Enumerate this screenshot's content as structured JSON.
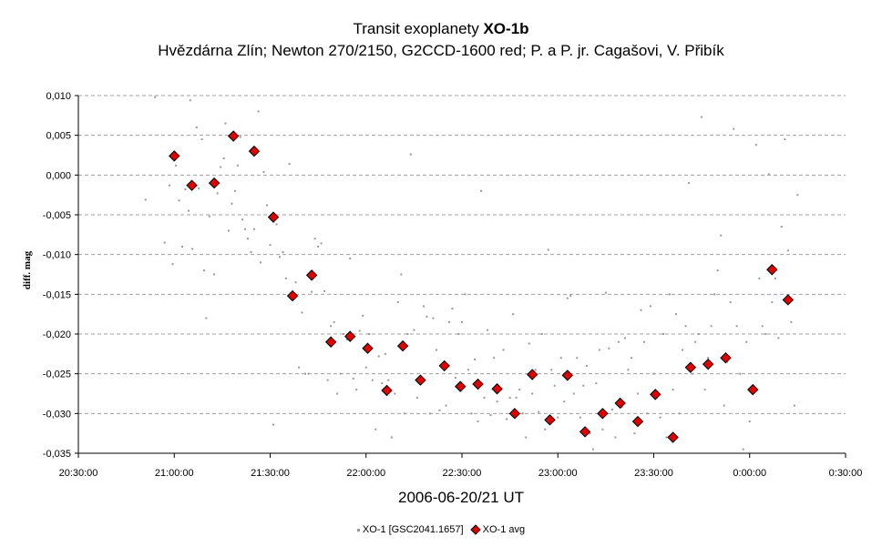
{
  "chart_data": {
    "type": "scatter",
    "title_plain": "Transit exoplanety ",
    "title_bold": "XO-1b",
    "subtitle": "Hvězdárna Zlín; Newton 270/2150, G2CCD-1600 red; P. a P. jr. Cagašovi, V. Přibík",
    "xlabel": "2006-06-20/21 UT",
    "ylabel": "diff. mag",
    "x_ticks": [
      "20:30:00",
      "21:00:00",
      "21:30:00",
      "22:00:00",
      "22:30:00",
      "23:00:00",
      "23:30:00",
      "0:00:00",
      "0:30:00"
    ],
    "y_ticks": [
      "0,010",
      "0,005",
      "0,000",
      "-0,005",
      "-0,010",
      "-0,015",
      "-0,020",
      "-0,025",
      "-0,030",
      "-0,035"
    ],
    "xlim": [
      "20:30:00",
      "0:30:00"
    ],
    "ylim": [
      -0.035,
      0.01
    ],
    "grid": "horizontal dashed",
    "legend_position": "bottom",
    "series": [
      {
        "name": "XO-1 [GSC2041.1657]",
        "marker": "small-gray-dot",
        "color": "#999999",
        "points": [
          [
            "20:51:00",
            -0.0031
          ],
          [
            "20:54:00",
            0.0098
          ],
          [
            "20:57:00",
            -0.0085
          ],
          [
            "20:58:30",
            -0.0013
          ],
          [
            "20:59:30",
            -0.0112
          ],
          [
            "21:00:30",
            0.0012
          ],
          [
            "21:01:30",
            -0.0032
          ],
          [
            "21:02:30",
            -0.009
          ],
          [
            "21:03:30",
            -0.0018
          ],
          [
            "21:04:30",
            -0.0045
          ],
          [
            "21:05:00",
            0.0094
          ],
          [
            "21:05:40",
            -0.0093
          ],
          [
            "21:06:20",
            -0.001
          ],
          [
            "21:07:00",
            0.006
          ],
          [
            "21:07:40",
            -0.0017
          ],
          [
            "21:08:40",
            0.0045
          ],
          [
            "21:09:20",
            -0.012
          ],
          [
            "21:10:00",
            -0.018
          ],
          [
            "21:11:00",
            -0.0052
          ],
          [
            "21:12:30",
            -0.0125
          ],
          [
            "21:13:30",
            -0.0023
          ],
          [
            "21:14:30",
            0.001
          ],
          [
            "21:15:30",
            0.0021
          ],
          [
            "21:16:00",
            0.0065
          ],
          [
            "21:17:00",
            -0.007
          ],
          [
            "21:18:00",
            -0.0036
          ],
          [
            "21:19:00",
            -0.002
          ],
          [
            "21:19:50",
            0.0012
          ],
          [
            "21:20:40",
            0.0048
          ],
          [
            "21:21:20",
            -0.0056
          ],
          [
            "21:22:10",
            -0.0068
          ],
          [
            "21:23:00",
            -0.008
          ],
          [
            "21:24:00",
            -0.0097
          ],
          [
            "21:25:00",
            -0.0068
          ],
          [
            "21:26:20",
            0.008
          ],
          [
            "21:27:00",
            -0.011
          ],
          [
            "21:28:00",
            0.0004
          ],
          [
            "21:29:00",
            -0.0038
          ],
          [
            "21:30:00",
            -0.0088
          ],
          [
            "21:31:00",
            -0.0314
          ],
          [
            "21:32:00",
            -0.0062
          ],
          [
            "21:33:00",
            -0.0103
          ],
          [
            "21:34:00",
            -0.0097
          ],
          [
            "21:35:00",
            -0.013
          ],
          [
            "21:36:00",
            0.0014
          ],
          [
            "21:37:00",
            -0.0149
          ],
          [
            "21:38:00",
            -0.0135
          ],
          [
            "21:39:00",
            -0.0242
          ],
          [
            "21:40:00",
            -0.0173
          ],
          [
            "21:41:00",
            -0.025
          ],
          [
            "21:42:00",
            -0.025
          ],
          [
            "21:43:00",
            -0.0147
          ],
          [
            "21:44:00",
            -0.008
          ],
          [
            "21:45:00",
            -0.009
          ],
          [
            "21:46:00",
            -0.0086
          ],
          [
            "21:47:00",
            -0.0146
          ],
          [
            "21:48:00",
            -0.0258
          ],
          [
            "21:49:00",
            -0.019
          ],
          [
            "21:50:00",
            -0.0185
          ],
          [
            "21:51:00",
            -0.0275
          ],
          [
            "21:52:00",
            -0.025
          ],
          [
            "21:53:00",
            -0.02
          ],
          [
            "21:54:00",
            -0.0207
          ],
          [
            "21:55:00",
            -0.0105
          ],
          [
            "21:56:00",
            -0.0256
          ],
          [
            "21:57:00",
            -0.027
          ],
          [
            "21:58:00",
            -0.0196
          ],
          [
            "21:59:00",
            -0.0177
          ],
          [
            "22:00:00",
            -0.0242
          ],
          [
            "22:01:00",
            -0.02
          ],
          [
            "22:02:00",
            -0.0258
          ],
          [
            "22:03:00",
            -0.032
          ],
          [
            "22:04:00",
            -0.0228
          ],
          [
            "22:05:00",
            -0.0262
          ],
          [
            "22:06:00",
            -0.0225
          ],
          [
            "22:07:00",
            -0.0258
          ],
          [
            "22:08:00",
            -0.033
          ],
          [
            "22:09:00",
            -0.0275
          ],
          [
            "22:10:00",
            -0.016
          ],
          [
            "22:11:00",
            -0.0125
          ],
          [
            "22:12:00",
            -0.03
          ],
          [
            "22:13:00",
            -0.02
          ],
          [
            "22:14:00",
            0.0026
          ],
          [
            "22:15:00",
            -0.0195
          ],
          [
            "22:16:00",
            -0.028
          ],
          [
            "22:17:00",
            -0.026
          ],
          [
            "22:18:00",
            -0.0165
          ],
          [
            "22:19:00",
            -0.0178
          ],
          [
            "22:20:00",
            -0.03
          ],
          [
            "22:21:00",
            -0.018
          ],
          [
            "22:22:00",
            -0.022
          ],
          [
            "22:23:00",
            -0.0296
          ],
          [
            "22:24:00",
            -0.024
          ],
          [
            "22:25:00",
            -0.029
          ],
          [
            "22:26:00",
            -0.0185
          ],
          [
            "22:27:00",
            -0.0168
          ],
          [
            "22:28:00",
            -0.0255
          ],
          [
            "22:29:00",
            -0.02
          ],
          [
            "22:30:00",
            -0.0185
          ],
          [
            "22:31:00",
            -0.015
          ],
          [
            "22:32:00",
            -0.0245
          ],
          [
            "22:33:00",
            -0.03
          ],
          [
            "22:34:00",
            -0.0232
          ],
          [
            "22:35:00",
            -0.031
          ],
          [
            "22:36:00",
            -0.002
          ],
          [
            "22:37:00",
            -0.028
          ],
          [
            "22:38:00",
            -0.0195
          ],
          [
            "22:39:00",
            -0.0302
          ],
          [
            "22:40:00",
            -0.023
          ],
          [
            "22:41:00",
            -0.0285
          ],
          [
            "22:42:00",
            -0.0268
          ],
          [
            "22:43:00",
            -0.022
          ],
          [
            "22:44:00",
            -0.0307
          ],
          [
            "22:45:00",
            -0.028
          ],
          [
            "22:46:00",
            -0.0175
          ],
          [
            "22:47:00",
            -0.028
          ],
          [
            "22:48:00",
            -0.027
          ],
          [
            "22:49:00",
            -0.03
          ],
          [
            "22:50:00",
            -0.033
          ],
          [
            "22:51:00",
            -0.0212
          ],
          [
            "22:52:00",
            -0.0275
          ],
          [
            "22:53:00",
            -0.0245
          ],
          [
            "22:54:00",
            -0.0298
          ],
          [
            "22:55:00",
            -0.02
          ],
          [
            "22:56:00",
            -0.032
          ],
          [
            "22:57:00",
            -0.0094
          ],
          [
            "22:58:00",
            -0.0245
          ],
          [
            "22:59:00",
            -0.0265
          ],
          [
            "23:00:00",
            -0.0305
          ],
          [
            "23:01:00",
            -0.023
          ],
          [
            "23:02:00",
            -0.0285
          ],
          [
            "23:03:00",
            -0.0155
          ],
          [
            "23:04:00",
            -0.0152
          ],
          [
            "23:05:00",
            -0.0275
          ],
          [
            "23:06:00",
            -0.023
          ],
          [
            "23:07:00",
            -0.0305
          ],
          [
            "23:08:00",
            -0.0265
          ],
          [
            "23:09:00",
            -0.024
          ],
          [
            "23:10:00",
            -0.0325
          ],
          [
            "23:11:00",
            -0.0345
          ],
          [
            "23:12:00",
            -0.0262
          ],
          [
            "23:13:00",
            -0.022
          ],
          [
            "23:14:00",
            -0.032
          ],
          [
            "23:15:00",
            -0.0148
          ],
          [
            "23:16:00",
            -0.0218
          ],
          [
            "23:17:00",
            -0.0295
          ],
          [
            "23:18:00",
            -0.033
          ],
          [
            "23:19:00",
            -0.021
          ],
          [
            "23:20:00",
            -0.0292
          ],
          [
            "23:21:00",
            -0.0205
          ],
          [
            "23:22:00",
            -0.0245
          ],
          [
            "23:23:00",
            -0.023
          ],
          [
            "23:24:00",
            -0.0325
          ],
          [
            "23:25:00",
            -0.0275
          ],
          [
            "23:26:00",
            -0.017
          ],
          [
            "23:27:00",
            -0.021
          ],
          [
            "23:28:00",
            -0.03
          ],
          [
            "23:29:00",
            -0.0165
          ],
          [
            "23:30:00",
            -0.025
          ],
          [
            "23:31:00",
            -0.028
          ],
          [
            "23:32:00",
            -0.0305
          ],
          [
            "23:33:00",
            -0.02
          ],
          [
            "23:34:00",
            -0.033
          ],
          [
            "23:35:00",
            -0.015
          ],
          [
            "23:36:00",
            -0.027
          ],
          [
            "23:37:00",
            -0.0175
          ],
          [
            "23:38:00",
            -0.03
          ],
          [
            "23:39:00",
            -0.022
          ],
          [
            "23:40:00",
            -0.019
          ],
          [
            "23:41:00",
            -0.001
          ],
          [
            "23:42:00",
            -0.025
          ],
          [
            "23:43:00",
            -0.021
          ],
          [
            "23:44:00",
            -0.02
          ],
          [
            "23:45:00",
            0.0073
          ],
          [
            "23:46:00",
            -0.027
          ],
          [
            "23:47:00",
            -0.023
          ],
          [
            "23:48:00",
            -0.019
          ],
          [
            "23:49:00",
            -0.015
          ],
          [
            "23:50:00",
            -0.012
          ],
          [
            "23:51:00",
            -0.0076
          ],
          [
            "23:52:00",
            -0.029
          ],
          [
            "23:53:00",
            -0.0235
          ],
          [
            "23:54:00",
            -0.016
          ],
          [
            "23:55:00",
            0.0058
          ],
          [
            "23:56:00",
            -0.019
          ],
          [
            "23:57:00",
            -0.025
          ],
          [
            "23:58:00",
            -0.0345
          ],
          [
            "23:59:00",
            -0.021
          ],
          [
            "0:00:00",
            -0.031
          ],
          [
            "0:01:00",
            -0.027
          ],
          [
            "0:02:00",
            0.0038
          ],
          [
            "0:03:00",
            -0.013
          ],
          [
            "0:04:00",
            -0.019
          ],
          [
            "0:05:00",
            -0.02
          ],
          [
            "0:06:00",
            0.0001
          ],
          [
            "0:07:00",
            -0.016
          ],
          [
            "0:08:00",
            -0.013
          ],
          [
            "0:09:00",
            -0.0205
          ],
          [
            "0:10:00",
            -0.0065
          ],
          [
            "0:11:00",
            0.0045
          ],
          [
            "0:12:00",
            -0.0095
          ],
          [
            "0:13:00",
            -0.0185
          ],
          [
            "0:14:00",
            -0.029
          ],
          [
            "0:15:00",
            -0.0025
          ]
        ]
      },
      {
        "name": "XO-1 avg",
        "marker": "red-diamond",
        "color": "#e00000",
        "points": [
          [
            "21:00:00",
            0.0024
          ],
          [
            "21:05:30",
            -0.0013
          ],
          [
            "21:12:30",
            -0.001
          ],
          [
            "21:18:30",
            0.0049
          ],
          [
            "21:25:00",
            0.003
          ],
          [
            "21:31:00",
            -0.0053
          ],
          [
            "21:37:00",
            -0.0152
          ],
          [
            "21:43:00",
            -0.0126
          ],
          [
            "21:49:00",
            -0.021
          ],
          [
            "21:55:00",
            -0.0203
          ],
          [
            "22:00:30",
            -0.0218
          ],
          [
            "22:06:30",
            -0.0271
          ],
          [
            "22:11:30",
            -0.0215
          ],
          [
            "22:17:00",
            -0.0258
          ],
          [
            "22:24:30",
            -0.024
          ],
          [
            "22:29:30",
            -0.0266
          ],
          [
            "22:35:00",
            -0.0263
          ],
          [
            "22:41:00",
            -0.0269
          ],
          [
            "22:46:30",
            -0.03
          ],
          [
            "22:52:00",
            -0.0251
          ],
          [
            "22:57:30",
            -0.0308
          ],
          [
            "23:03:00",
            -0.0252
          ],
          [
            "23:08:30",
            -0.0323
          ],
          [
            "23:14:00",
            -0.03
          ],
          [
            "23:19:30",
            -0.0287
          ],
          [
            "23:25:00",
            -0.031
          ],
          [
            "23:30:30",
            -0.0276
          ],
          [
            "23:36:00",
            -0.033
          ],
          [
            "23:41:30",
            -0.0242
          ],
          [
            "23:47:00",
            -0.0238
          ],
          [
            "23:52:30",
            -0.023
          ],
          [
            "0:01:00",
            -0.027
          ],
          [
            "0:07:00",
            -0.0119
          ],
          [
            "0:12:00",
            -0.0157
          ]
        ]
      }
    ]
  },
  "legend": {
    "item1": "XO-1 [GSC2041.1657]",
    "item2": "XO-1 avg"
  }
}
